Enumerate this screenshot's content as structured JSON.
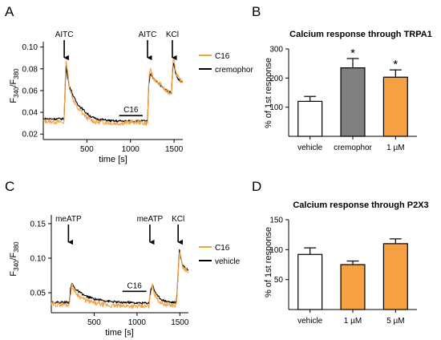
{
  "panels": {
    "A": "A",
    "B": "B",
    "C": "C",
    "D": "D"
  },
  "colors": {
    "orange": "#f5a043",
    "grey": "#808080",
    "white": "#ffffff",
    "black": "#000000"
  },
  "chart_data": [
    {
      "id": "A",
      "type": "line",
      "title": "",
      "xlabel": "time [s]",
      "ylabel_base": "F",
      "ylabel_num_sub": "340",
      "ylabel_slash": "/F",
      "ylabel_den_sub": "380",
      "xlim": [
        0,
        1600
      ],
      "ylim": [
        0.015,
        0.102
      ],
      "xticks": [
        500,
        1000,
        1500
      ],
      "xticklabels": [
        "500",
        "1000",
        "1500"
      ],
      "yticks": [
        0.02,
        0.04,
        0.06,
        0.08,
        0.1
      ],
      "yticklabels": [
        "0.02",
        "0.04",
        "0.06",
        "0.08",
        "0.10"
      ],
      "arrows": [
        {
          "label": "AITC",
          "x": 240
        },
        {
          "label": "AITC",
          "x": 1195
        },
        {
          "label": "KCl",
          "x": 1480
        }
      ],
      "bar_annotation": {
        "label": "C16",
        "x_start": 870,
        "x_end": 1140,
        "y": 0.037
      },
      "legend_position": "right",
      "series": [
        {
          "name": "C16",
          "color": "#f5a043",
          "x": [
            0,
            200,
            238,
            250,
            262,
            280,
            300,
            330,
            360,
            400,
            450,
            500,
            550,
            600,
            700,
            800,
            900,
            1000,
            1100,
            1150,
            1180,
            1195,
            1210,
            1230,
            1260,
            1300,
            1350,
            1400,
            1440,
            1470,
            1480,
            1495,
            1510,
            1530,
            1560,
            1600
          ],
          "y": [
            0.032,
            0.031,
            0.031,
            0.068,
            0.089,
            0.076,
            0.063,
            0.055,
            0.048,
            0.043,
            0.039,
            0.035,
            0.033,
            0.031,
            0.031,
            0.03,
            0.03,
            0.031,
            0.031,
            0.03,
            0.03,
            0.03,
            0.07,
            0.079,
            0.072,
            0.068,
            0.065,
            0.06,
            0.058,
            0.058,
            0.08,
            0.091,
            0.082,
            0.075,
            0.07,
            0.068
          ]
        },
        {
          "name": "cremophor",
          "color": "#000000",
          "x": [
            0,
            200,
            238,
            250,
            262,
            280,
            300,
            330,
            360,
            400,
            450,
            500,
            550,
            600,
            700,
            800,
            900,
            1000,
            1100,
            1150,
            1180,
            1195,
            1210,
            1230,
            1260,
            1300,
            1350,
            1400,
            1440,
            1470,
            1480,
            1495,
            1510,
            1530,
            1560,
            1600
          ],
          "y": [
            0.034,
            0.034,
            0.034,
            0.062,
            0.082,
            0.072,
            0.064,
            0.058,
            0.052,
            0.047,
            0.043,
            0.039,
            0.036,
            0.034,
            0.033,
            0.032,
            0.032,
            0.032,
            0.032,
            0.032,
            0.032,
            0.032,
            0.066,
            0.076,
            0.072,
            0.068,
            0.064,
            0.061,
            0.059,
            0.058,
            0.076,
            0.086,
            0.079,
            0.073,
            0.069,
            0.068
          ]
        }
      ]
    },
    {
      "id": "B",
      "type": "bar",
      "title": "Calcium response through TRPA1",
      "xlabel": "",
      "ylabel": "% of 1st response",
      "ylim": [
        0,
        300
      ],
      "yticks": [
        100,
        200,
        300
      ],
      "yticklabels": [
        "100",
        "200",
        "300"
      ],
      "categories": [
        "vehicle",
        "cremophor",
        "1 µM"
      ],
      "values": [
        120,
        235,
        203
      ],
      "errors": [
        17,
        32,
        25
      ],
      "colors": [
        "#ffffff",
        "#808080",
        "#f5a043"
      ],
      "significance": [
        "",
        "*",
        "*"
      ]
    },
    {
      "id": "C",
      "type": "line",
      "title": "",
      "xlabel": "time [s]",
      "ylabel_base": "F",
      "ylabel_num_sub": "340",
      "ylabel_slash": "/F",
      "ylabel_den_sub": "380",
      "xlim": [
        0,
        1600
      ],
      "ylim": [
        0.021,
        0.158
      ],
      "xticks": [
        500,
        1000,
        1500
      ],
      "xticklabels": [
        "500",
        "1000",
        "1500"
      ],
      "yticks": [
        0.05,
        0.1,
        0.15
      ],
      "yticklabels": [
        "0.05",
        "0.10",
        "0.15"
      ],
      "arrows": [
        {
          "label": "meATP",
          "x": 200
        },
        {
          "label": "meATP",
          "x": 1150
        },
        {
          "label": "KCl",
          "x": 1480
        }
      ],
      "bar_annotation": {
        "label": "C16",
        "x_start": 830,
        "x_end": 1110,
        "y": 0.052
      },
      "legend_position": "right",
      "series": [
        {
          "name": "C16",
          "color": "#f5a043",
          "x": [
            0,
            180,
            210,
            225,
            240,
            260,
            300,
            350,
            400,
            500,
            600,
            700,
            800,
            900,
            1000,
            1100,
            1140,
            1160,
            1180,
            1200,
            1240,
            1300,
            1400,
            1460,
            1480,
            1495,
            1510,
            1530,
            1560,
            1600
          ],
          "y": [
            0.033,
            0.033,
            0.033,
            0.05,
            0.061,
            0.055,
            0.048,
            0.043,
            0.039,
            0.035,
            0.033,
            0.031,
            0.031,
            0.031,
            0.03,
            0.03,
            0.03,
            0.05,
            0.06,
            0.05,
            0.04,
            0.034,
            0.032,
            0.032,
            0.075,
            0.11,
            0.097,
            0.088,
            0.084,
            0.08
          ]
        },
        {
          "name": "vehicle",
          "color": "#000000",
          "x": [
            0,
            180,
            210,
            225,
            240,
            260,
            300,
            350,
            400,
            500,
            600,
            700,
            800,
            900,
            1000,
            1100,
            1140,
            1160,
            1180,
            1200,
            1240,
            1300,
            1400,
            1460,
            1480,
            1495,
            1510,
            1530,
            1560,
            1600
          ],
          "y": [
            0.036,
            0.036,
            0.036,
            0.055,
            0.064,
            0.059,
            0.053,
            0.049,
            0.045,
            0.041,
            0.039,
            0.037,
            0.036,
            0.036,
            0.035,
            0.035,
            0.035,
            0.054,
            0.062,
            0.054,
            0.045,
            0.039,
            0.036,
            0.036,
            0.078,
            0.113,
            0.1,
            0.091,
            0.086,
            0.083
          ]
        }
      ]
    },
    {
      "id": "D",
      "type": "bar",
      "title": "Calcium response through P2X3",
      "xlabel": "",
      "ylabel": "% of 1st response",
      "ylim": [
        0,
        150
      ],
      "yticks": [
        50,
        100,
        150
      ],
      "yticklabels": [
        "50",
        "100",
        "150"
      ],
      "categories": [
        "vehicle",
        "1 µM",
        "5 µM"
      ],
      "values": [
        92,
        75,
        110
      ],
      "errors": [
        11,
        6,
        8
      ],
      "colors": [
        "#ffffff",
        "#f5a043",
        "#f5a043"
      ],
      "significance": [
        "",
        "",
        ""
      ]
    }
  ]
}
